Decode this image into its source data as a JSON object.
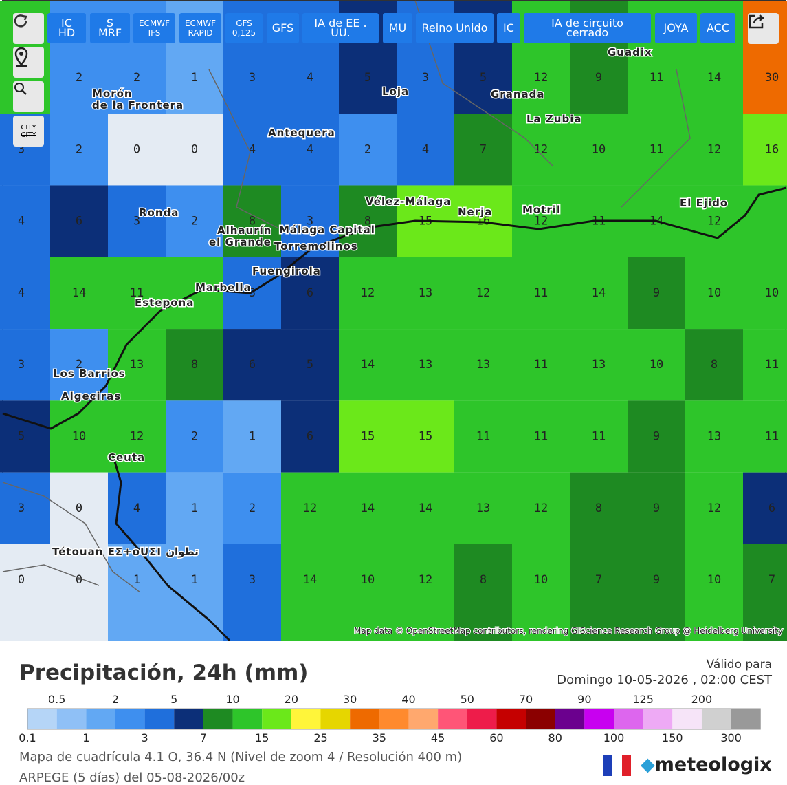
{
  "toolbar": {
    "buttons": [
      "IC HD",
      "S MRF",
      "ECMWF IFS",
      "ECMWF RAPID",
      "GFS 0,125",
      "GFS",
      "IA de EE . UU.",
      "MU",
      "Reino Unido",
      "IC",
      "IA de circuito cerrado",
      "JOYA",
      "ACC"
    ]
  },
  "side_tools": {
    "city_on": "CITY",
    "city_off": "CITY"
  },
  "map": {
    "grid_values": [
      [
        null,
        2,
        2,
        1,
        3,
        4,
        5,
        3,
        5,
        12,
        9,
        11,
        14,
        30
      ],
      [
        3,
        2,
        0,
        0,
        4,
        4,
        2,
        4,
        7,
        12,
        10,
        11,
        12,
        16
      ],
      [
        4,
        6,
        3,
        2,
        8,
        3,
        8,
        15,
        16,
        12,
        11,
        14,
        12,
        null
      ],
      [
        4,
        14,
        11,
        null,
        3,
        6,
        12,
        13,
        12,
        11,
        14,
        9,
        10,
        10
      ],
      [
        3,
        2,
        13,
        8,
        6,
        5,
        14,
        13,
        13,
        11,
        13,
        10,
        8,
        11
      ],
      [
        5,
        10,
        12,
        2,
        1,
        6,
        15,
        15,
        11,
        11,
        11,
        9,
        13,
        11
      ],
      [
        3,
        0,
        4,
        1,
        2,
        12,
        14,
        14,
        13,
        12,
        8,
        9,
        12,
        6
      ],
      [
        0,
        0,
        1,
        1,
        3,
        14,
        10,
        12,
        8,
        10,
        7,
        9,
        10,
        7
      ]
    ],
    "cities": [
      "Morón de la Frontera",
      "Loja",
      "Granada",
      "La Zubia",
      "Guadix",
      "Antequera",
      "Vélez-Málaga",
      "Nerja",
      "Motril",
      "El Ejido",
      "Ronda",
      "Alhaurín el Grande",
      "Málaga Capital",
      "Torremolinos",
      "Fuengirola",
      "Marbella",
      "Estepona",
      "Los Barrios",
      "Algeciras",
      "Ceuta",
      "Tétouan ΕΣ+οUΣI تطوان"
    ],
    "attribution": "Map data © OpenStreetMap contributors, rendering GIScience Research Group @ Heidelberg University"
  },
  "footer": {
    "title": "Precipitación, 24h (mm)",
    "valid_label": "Válido para",
    "valid_time": "Domingo 10-05-2026 , 02:00 CEST",
    "grid_info": "Mapa de cuadrícula 4.1 O, 36.4 N (Nivel de zoom 4 / Resolución 400 m)",
    "model_info": "ARPEGE (5 días) del 05-08-2026/00z",
    "brand": "meteologix"
  },
  "legend": {
    "thresholds": [
      0.1,
      0.5,
      1,
      2,
      3,
      5,
      7,
      10,
      15,
      20,
      25,
      30,
      35,
      40,
      45,
      50,
      60,
      70,
      80,
      90,
      100,
      125,
      150,
      200,
      300
    ],
    "colors": [
      "#b5d5f7",
      "#8fc0f6",
      "#62a8f3",
      "#3e8fef",
      "#1f6fdc",
      "#0c2f78",
      "#1e8a22",
      "#2ec52a",
      "#6be81a",
      "#fff53a",
      "#e6d600",
      "#ee6a00",
      "#ff8a2e",
      "#ffa86e",
      "#ff5577",
      "#ee1c4a",
      "#c50000",
      "#8b0000",
      "#6b008e",
      "#c800f0",
      "#dd66ee",
      "#eeaaf5",
      "#f6e4f8",
      "#d0d0d0",
      "#999999"
    ]
  }
}
